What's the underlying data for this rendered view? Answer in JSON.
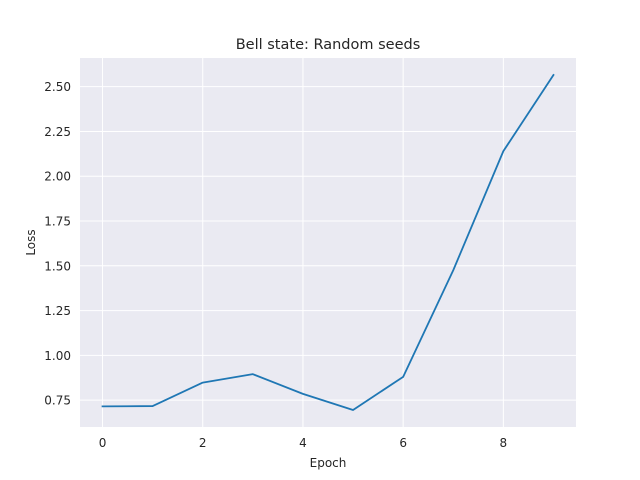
{
  "chart_data": {
    "type": "line",
    "title": "Bell state: Random seeds",
    "xlabel": "Epoch",
    "ylabel": "Loss",
    "xlim": [
      -0.45,
      9.45
    ],
    "ylim": [
      0.6,
      2.66
    ],
    "xticks": [
      0,
      2,
      4,
      6,
      8
    ],
    "xtick_labels": [
      "0",
      "2",
      "4",
      "6",
      "8"
    ],
    "yticks": [
      0.75,
      1.0,
      1.25,
      1.5,
      1.75,
      2.0,
      2.25,
      2.5
    ],
    "ytick_labels": [
      "0.75",
      "1.00",
      "1.25",
      "1.50",
      "1.75",
      "2.00",
      "2.25",
      "2.50"
    ],
    "grid": true,
    "background": "#eaeaf2",
    "series": [
      {
        "color": "#1f77b4",
        "x": [
          0,
          1,
          2,
          3,
          4,
          5,
          6,
          7,
          8,
          9
        ],
        "values": [
          0.715,
          0.717,
          0.848,
          0.895,
          0.785,
          0.695,
          0.88,
          1.475,
          2.14,
          2.565
        ]
      }
    ]
  }
}
